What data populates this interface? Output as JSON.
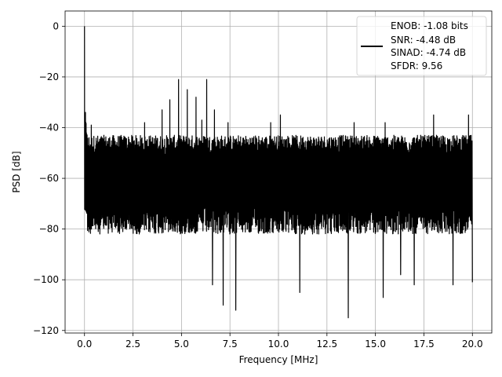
{
  "chart_data": {
    "type": "line",
    "title": "",
    "xlabel": "Frequency [MHz]",
    "ylabel": "PSD [dB]",
    "xlim": [
      -1,
      21
    ],
    "ylim": [
      -121,
      6
    ],
    "x_ticks": [
      0.0,
      2.5,
      5.0,
      7.5,
      10.0,
      12.5,
      15.0,
      17.5,
      20.0
    ],
    "x_tick_labels": [
      "0.0",
      "2.5",
      "5.0",
      "7.5",
      "10.0",
      "12.5",
      "15.0",
      "17.5",
      "20.0"
    ],
    "y_ticks": [
      0,
      -20,
      -40,
      -60,
      -80,
      -100,
      -120
    ],
    "y_tick_labels": [
      "0",
      "−20",
      "−40",
      "−60",
      "−80",
      "−100",
      "−120"
    ],
    "grid": true,
    "legend_position": "top-right",
    "series": [
      {
        "color": "#000000",
        "legend_lines": [
          "ENOB: -1.08 bits",
          "SNR: -4.48 dB",
          "SINAD: -4.74 dB",
          "SFDR: 9.56"
        ],
        "x_range": [
          0,
          20
        ],
        "noise_floor_db": -60,
        "noise_upper_envelope_db": -43,
        "noise_lower_envelope_db": -82,
        "dc_peak": {
          "x": 0.0,
          "y": 0.0
        },
        "spurs": [
          {
            "x": 0.05,
            "y": -34
          },
          {
            "x": 0.35,
            "y": -39
          },
          {
            "x": 3.1,
            "y": -38
          },
          {
            "x": 4.0,
            "y": -33
          },
          {
            "x": 4.4,
            "y": -29
          },
          {
            "x": 4.85,
            "y": -21
          },
          {
            "x": 5.3,
            "y": -25
          },
          {
            "x": 5.75,
            "y": -28
          },
          {
            "x": 6.05,
            "y": -37
          },
          {
            "x": 6.3,
            "y": -21
          },
          {
            "x": 6.7,
            "y": -33
          },
          {
            "x": 7.4,
            "y": -38
          },
          {
            "x": 9.6,
            "y": -38
          },
          {
            "x": 10.1,
            "y": -35
          },
          {
            "x": 13.9,
            "y": -38
          },
          {
            "x": 15.5,
            "y": -38
          },
          {
            "x": 18.0,
            "y": -35
          },
          {
            "x": 19.0,
            "y": -36
          },
          {
            "x": 19.8,
            "y": -35
          }
        ],
        "deep_nulls": [
          {
            "x": 6.6,
            "y": -102
          },
          {
            "x": 7.15,
            "y": -110
          },
          {
            "x": 7.8,
            "y": -112
          },
          {
            "x": 11.1,
            "y": -105
          },
          {
            "x": 13.6,
            "y": -115
          },
          {
            "x": 15.4,
            "y": -107
          },
          {
            "x": 16.3,
            "y": -98
          },
          {
            "x": 17.0,
            "y": -102
          },
          {
            "x": 19.0,
            "y": -102
          },
          {
            "x": 20.0,
            "y": -101
          }
        ]
      }
    ]
  }
}
